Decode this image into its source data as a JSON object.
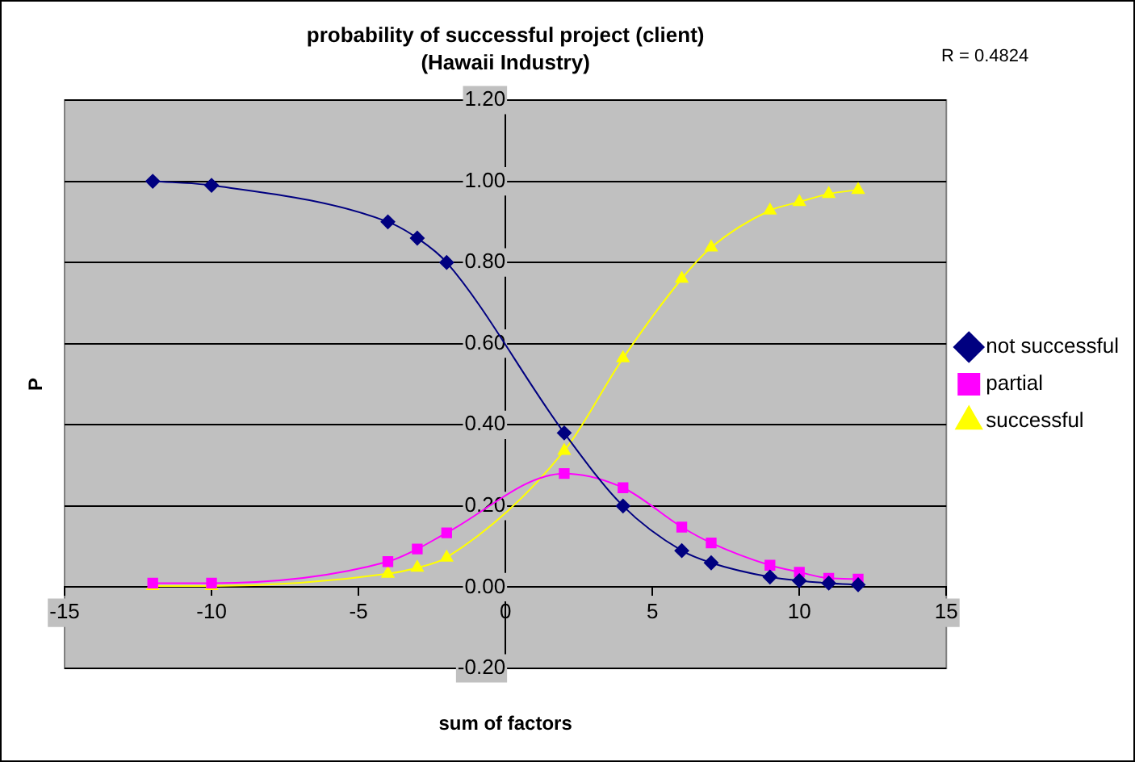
{
  "chart_data": {
    "type": "line",
    "title": "probability of successful project (client)\n(Hawaii Industry)",
    "xlabel": "sum of factors",
    "ylabel": "P",
    "annotations": [
      "R = 0.4824"
    ],
    "x": [
      -12,
      -10,
      -4,
      -3,
      -2,
      2,
      4,
      6,
      7,
      9,
      10,
      11,
      12
    ],
    "series": [
      {
        "name": "not successful",
        "color": "#000080",
        "marker": "diamond",
        "values": [
          1.0,
          0.99,
          0.9,
          0.86,
          0.8,
          0.38,
          0.2,
          0.09,
          0.06,
          0.025,
          0.016,
          0.01,
          0.006
        ]
      },
      {
        "name": "partial",
        "color": "#ff00ff",
        "marker": "square",
        "values": [
          0.01,
          0.01,
          0.063,
          0.094,
          0.134,
          0.28,
          0.245,
          0.148,
          0.109,
          0.054,
          0.037,
          0.022,
          0.02
        ]
      },
      {
        "name": "successful",
        "color": "#ffff00",
        "marker": "triangle",
        "values": [
          0.003,
          0.003,
          0.033,
          0.048,
          0.073,
          0.336,
          0.564,
          0.76,
          0.837,
          0.928,
          0.949,
          0.969,
          0.979
        ]
      }
    ],
    "xlim": [
      -15,
      15
    ],
    "xticks": [
      -15,
      -10,
      -5,
      0,
      5,
      10,
      15
    ],
    "ylim": [
      -0.2,
      1.2
    ],
    "yticks": [
      {
        "value": -0.2,
        "label": "-0.20"
      },
      {
        "value": 0,
        "label": "0.00"
      },
      {
        "value": 0.2,
        "label": "0.20"
      },
      {
        "value": 0.4,
        "label": "0.40"
      },
      {
        "value": 0.6,
        "label": "0.60"
      },
      {
        "value": 0.8,
        "label": "0.80"
      },
      {
        "value": 1.0,
        "label": "1.00"
      },
      {
        "value": 1.2,
        "label": "1.20"
      }
    ],
    "grid": "y",
    "legend": "right",
    "line_style": "solid"
  }
}
